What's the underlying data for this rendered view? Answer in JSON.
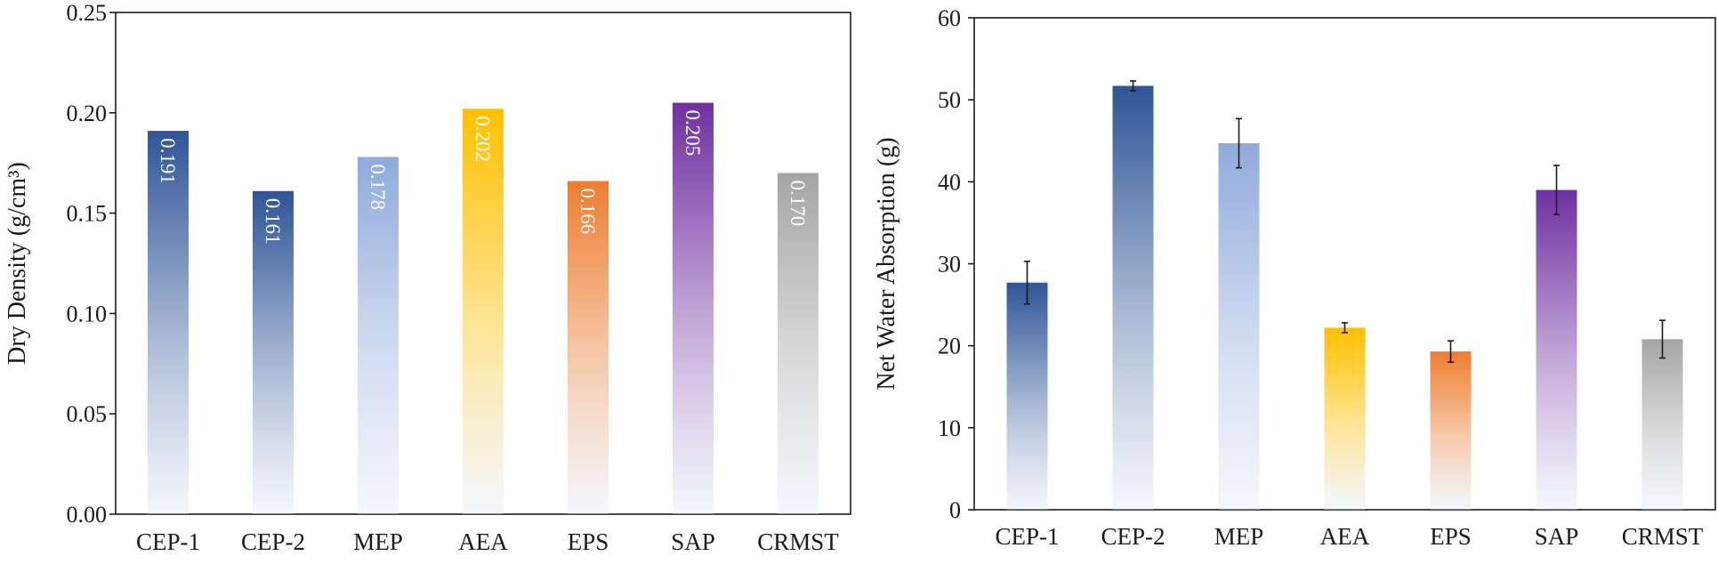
{
  "chart_data": [
    {
      "type": "bar",
      "title": "",
      "xlabel": "",
      "ylabel": "Dry Density (g/cm³)",
      "categories": [
        "CEP-1",
        "CEP-2",
        "MEP",
        "AEA",
        "EPS",
        "SAP",
        "CRMST"
      ],
      "values": [
        0.191,
        0.161,
        0.178,
        0.202,
        0.166,
        0.205,
        0.17
      ],
      "value_labels": [
        "0.191",
        "0.161",
        "0.178",
        "0.202",
        "0.166",
        "0.205",
        "0.170"
      ],
      "colors": [
        "#2f5597",
        "#2f5597",
        "#8faadc",
        "#ffc000",
        "#ed7d31",
        "#7030a0",
        "#a5a5a5"
      ],
      "ylim": [
        0,
        0.25
      ],
      "yticks": [
        "0.00",
        "0.05",
        "0.10",
        "0.15",
        "0.20",
        "0.25"
      ],
      "grid": false
    },
    {
      "type": "bar",
      "title": "",
      "xlabel": "",
      "ylabel": "Net Water Absorption (g)",
      "categories": [
        "CEP-1",
        "CEP-2",
        "MEP",
        "AEA",
        "EPS",
        "SAP",
        "CRMST"
      ],
      "values": [
        27.7,
        51.7,
        44.7,
        22.2,
        19.3,
        39.0,
        20.8
      ],
      "errors": [
        2.6,
        0.6,
        3.0,
        0.6,
        1.3,
        3.0,
        2.3
      ],
      "colors": [
        "#2f5597",
        "#2f5597",
        "#8faadc",
        "#ffc000",
        "#ed7d31",
        "#7030a0",
        "#a5a5a5"
      ],
      "ylim": [
        0,
        60
      ],
      "yticks": [
        "0",
        "10",
        "20",
        "30",
        "40",
        "50",
        "60"
      ],
      "grid": false
    }
  ]
}
